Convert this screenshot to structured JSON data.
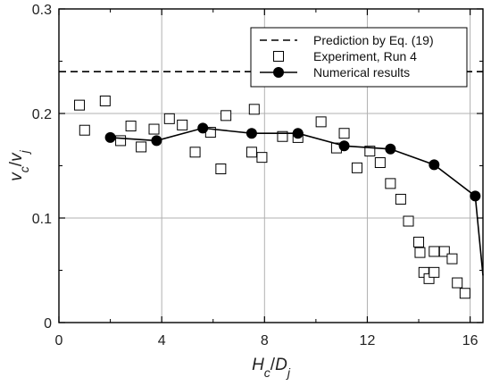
{
  "chart_data": {
    "type": "scatter",
    "title": "",
    "xlabel": {
      "main": "H",
      "main_sub": "c",
      "sep": "/",
      "denom": "D",
      "denom_sub": "j"
    },
    "ylabel": {
      "main": "v",
      "main_sub": "c",
      "sep": "/",
      "denom": "v",
      "denom_sub": "j"
    },
    "xlim": [
      0,
      16.5
    ],
    "ylim": [
      0,
      0.3
    ],
    "x_ticks": [
      0,
      4,
      8,
      12,
      16
    ],
    "x_tick_labels": [
      "0",
      "4",
      "8",
      "12",
      "16"
    ],
    "y_ticks": [
      0,
      0.1,
      0.2,
      0.3
    ],
    "y_tick_labels": [
      "0",
      "0.1",
      "0.2",
      "0.3"
    ],
    "grid": true,
    "legend_position": "top-right",
    "series": [
      {
        "name": "Prediction by Eq. (19)",
        "kind": "line-dashed",
        "color": "#000000",
        "x": [
          0,
          16.5
        ],
        "y": [
          0.24,
          0.24
        ]
      },
      {
        "name": "Experiment, Run 4",
        "kind": "open-squares",
        "color": "#000000",
        "x": [
          0.8,
          1.0,
          1.8,
          2.4,
          2.8,
          3.2,
          3.7,
          4.3,
          4.8,
          5.3,
          5.9,
          6.3,
          6.5,
          7.5,
          7.6,
          7.9,
          8.7,
          9.3,
          10.2,
          10.8,
          11.1,
          11.6,
          12.1,
          12.5,
          12.9,
          13.3,
          13.6,
          14.0,
          14.05,
          14.2,
          14.4,
          14.6,
          14.6,
          15.0,
          15.3,
          15.5,
          15.8
        ],
        "y": [
          0.208,
          0.184,
          0.212,
          0.174,
          0.188,
          0.168,
          0.185,
          0.195,
          0.189,
          0.163,
          0.182,
          0.147,
          0.198,
          0.163,
          0.204,
          0.158,
          0.178,
          0.177,
          0.192,
          0.167,
          0.181,
          0.148,
          0.164,
          0.153,
          0.133,
          0.118,
          0.097,
          0.077,
          0.067,
          0.048,
          0.042,
          0.048,
          0.068,
          0.068,
          0.061,
          0.038,
          0.028
        ]
      },
      {
        "name": "Numerical results",
        "kind": "line-filled-circles",
        "color": "#000000",
        "x": [
          2.0,
          3.8,
          5.6,
          7.5,
          9.3,
          11.1,
          12.9,
          14.6,
          16.2,
          16.5
        ],
        "y": [
          0.177,
          0.174,
          0.186,
          0.181,
          0.181,
          0.169,
          0.166,
          0.151,
          0.121,
          0.045
        ],
        "markers_on_points": 9
      }
    ]
  }
}
